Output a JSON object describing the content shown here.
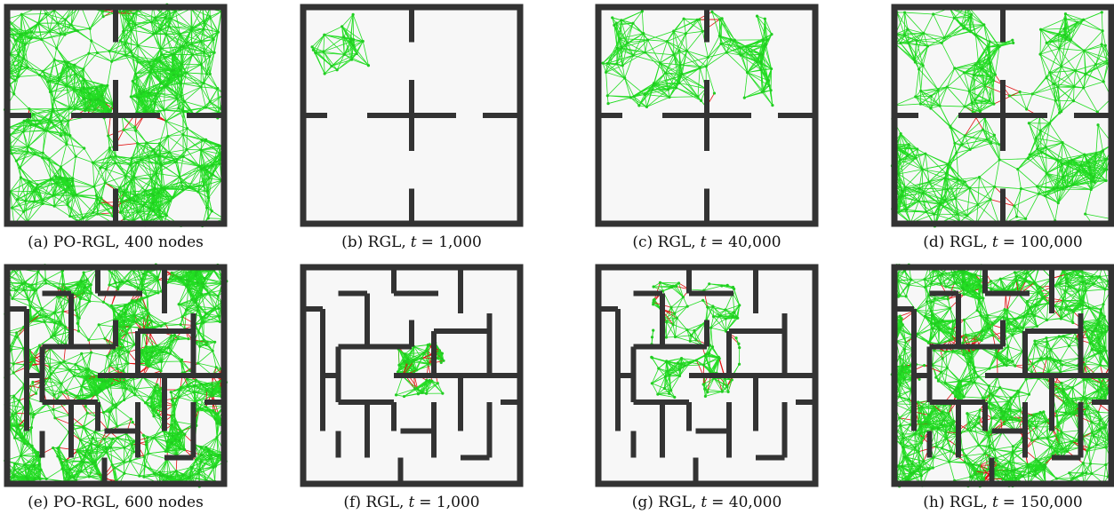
{
  "panels": [
    {
      "caption": "(a) PO-RGL, 400 nodes"
    },
    {
      "caption": "(b) RGL,",
      "variable": "t",
      "value": "= 1,000"
    },
    {
      "caption": "(c) RGL,",
      "variable": "t",
      "value": "= 40,000"
    },
    {
      "caption": "(d) RGL,",
      "variable": "t",
      "value": "= 100,000"
    },
    {
      "caption": "(e) PO-RGL, 600 nodes"
    },
    {
      "caption": "(f) RGL,",
      "variable": "t",
      "value": "= 1,000"
    },
    {
      "caption": "(g) RGL,",
      "variable": "t",
      "value": "= 40,000"
    },
    {
      "caption": "(h) RGL,",
      "variable": "t",
      "value": "= 150,000"
    }
  ]
}
